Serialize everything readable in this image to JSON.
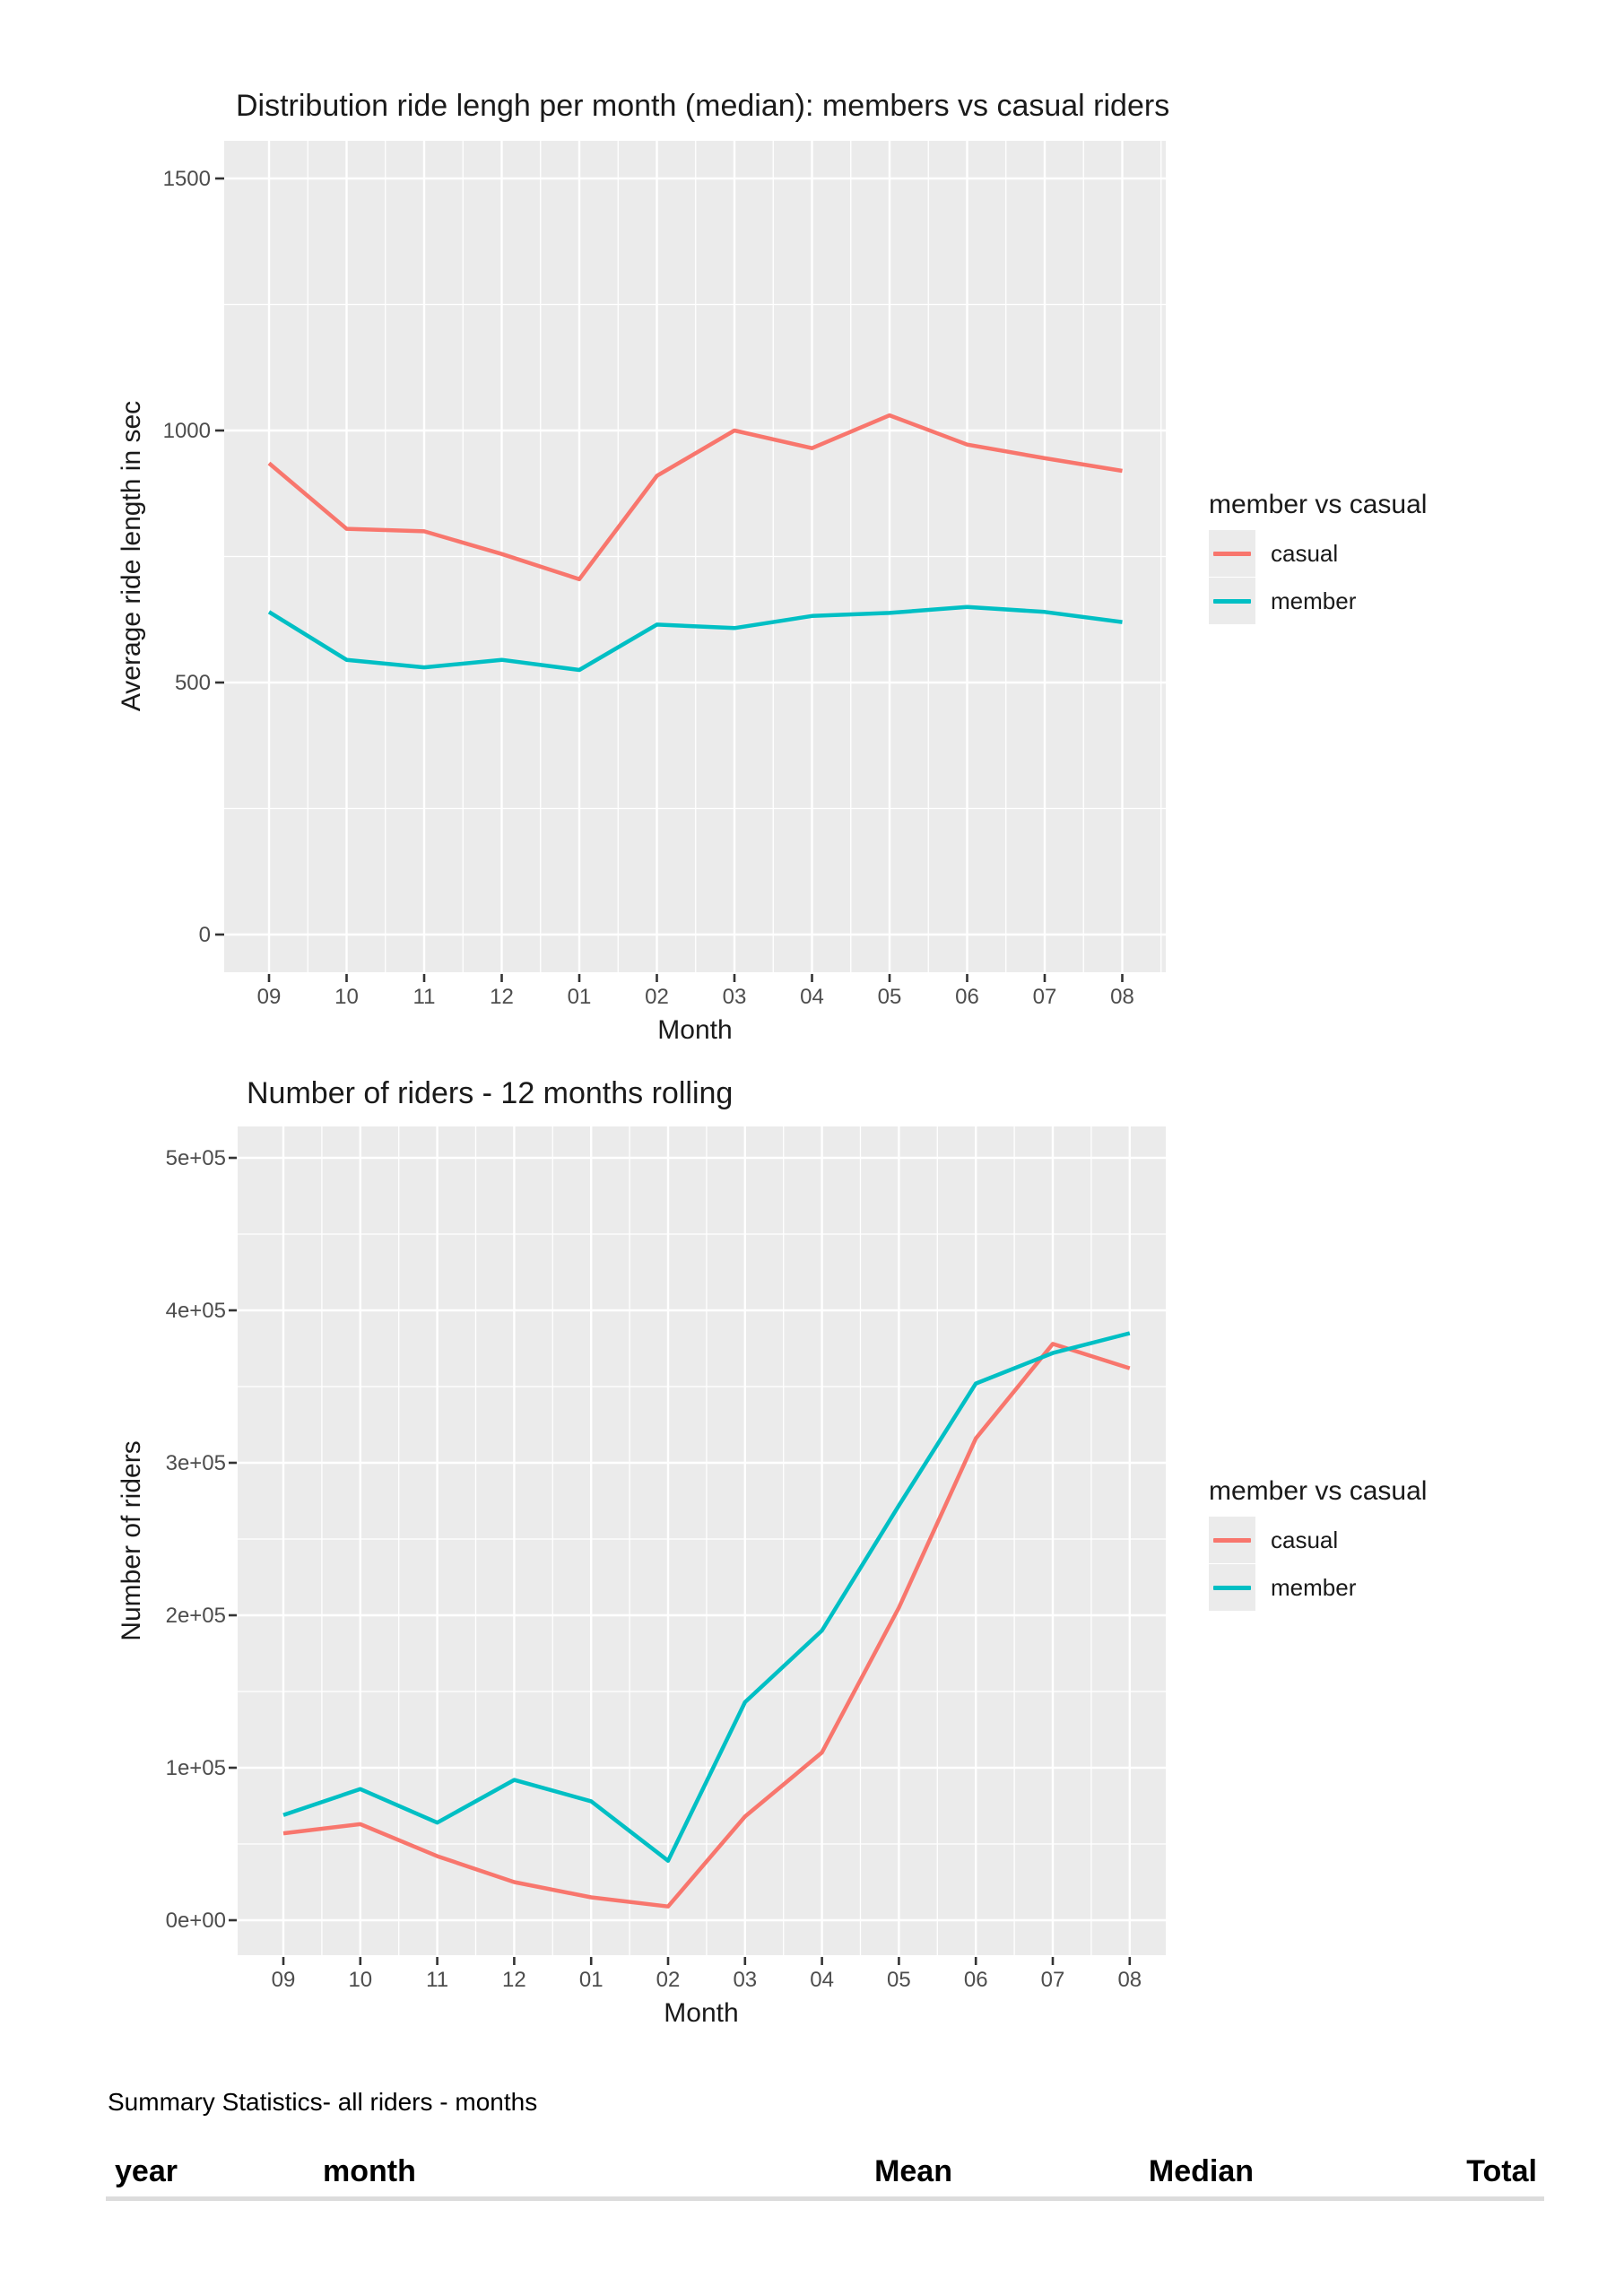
{
  "chart_data": [
    {
      "type": "line",
      "title": "Distribution ride lengh per month (median): members vs casual riders",
      "xlabel": "Month",
      "ylabel": "Average ride length in sec",
      "categories": [
        "09",
        "10",
        "11",
        "12",
        "01",
        "02",
        "03",
        "04",
        "05",
        "06",
        "07",
        "08"
      ],
      "y_tick_labels": [
        "0",
        "500",
        "1000",
        "1500"
      ],
      "y_tick_values": [
        0,
        500,
        1000,
        1500
      ],
      "ylim": [
        0,
        1575
      ],
      "grid": true,
      "legend_position": "right",
      "series": [
        {
          "name": "casual",
          "color": "#F8766D",
          "values": [
            935,
            805,
            800,
            755,
            705,
            910,
            1000,
            965,
            1030,
            972,
            945,
            920
          ]
        },
        {
          "name": "member",
          "color": "#00BFC4",
          "values": [
            640,
            545,
            530,
            545,
            525,
            615,
            608,
            632,
            638,
            650,
            640,
            620
          ]
        }
      ]
    },
    {
      "type": "line",
      "title": "Number of riders - 12 months rolling",
      "xlabel": "Month",
      "ylabel": "Number of riders",
      "categories": [
        "09",
        "10",
        "11",
        "12",
        "01",
        "02",
        "03",
        "04",
        "05",
        "06",
        "07",
        "08"
      ],
      "y_tick_labels": [
        "0e+00",
        "1e+05",
        "2e+05",
        "3e+05",
        "4e+05",
        "5e+05"
      ],
      "y_tick_values": [
        0,
        100000,
        200000,
        300000,
        400000,
        500000
      ],
      "ylim": [
        0,
        525000
      ],
      "grid": true,
      "legend_position": "right",
      "series": [
        {
          "name": "casual",
          "color": "#F8766D",
          "values": [
            57000,
            63000,
            42000,
            25000,
            15000,
            9000,
            68000,
            110000,
            205000,
            316000,
            378000,
            362000
          ]
        },
        {
          "name": "member",
          "color": "#00BFC4",
          "values": [
            69000,
            86000,
            64000,
            92000,
            78000,
            39000,
            143000,
            190000,
            272000,
            352000,
            372000,
            385000
          ]
        }
      ]
    }
  ],
  "legend": {
    "title": "member vs casual",
    "items": [
      {
        "label": "casual",
        "color": "#F8766D"
      },
      {
        "label": "member",
        "color": "#00BFC4"
      }
    ]
  },
  "summary": {
    "heading": "Summary Statistics- all riders - months",
    "columns": [
      "year",
      "month",
      "Mean",
      "Median",
      "Total"
    ]
  },
  "colors": {
    "casual": "#F8766D",
    "member": "#00BFC4",
    "panel": "#EBEBEB",
    "grid": "#FFFFFF",
    "tick_text": "#4D4D4D",
    "tick_mark": "#333333",
    "title_text": "#1A1A1A",
    "rule": "#DCDCDC"
  }
}
